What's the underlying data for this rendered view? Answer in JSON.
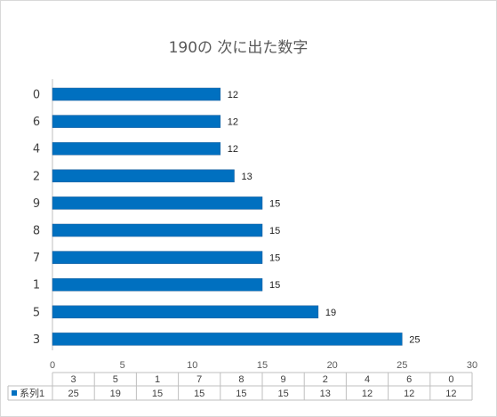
{
  "chart_data": {
    "type": "bar",
    "orientation": "horizontal",
    "title": "190の 次に出た数字",
    "categories": [
      "0",
      "6",
      "4",
      "2",
      "9",
      "8",
      "7",
      "1",
      "5",
      "3"
    ],
    "series": [
      {
        "name": "系列1",
        "values": [
          12,
          12,
          12,
          13,
          15,
          15,
          15,
          15,
          19,
          25
        ]
      }
    ],
    "xlim": [
      0,
      30
    ],
    "xticks": [
      "0",
      "5",
      "10",
      "15",
      "20",
      "25",
      "30"
    ],
    "grid": false,
    "data_labels": true,
    "data_table": {
      "categories": [
        "3",
        "5",
        "1",
        "7",
        "8",
        "9",
        "2",
        "4",
        "6",
        "0"
      ],
      "values": [
        "25",
        "19",
        "15",
        "15",
        "15",
        "15",
        "13",
        "12",
        "12",
        "12"
      ]
    },
    "colors": {
      "bar": "#0070c0",
      "bar_edge": "#1f5f9a",
      "axis": "#bfbfbf",
      "title": "#595959"
    }
  }
}
